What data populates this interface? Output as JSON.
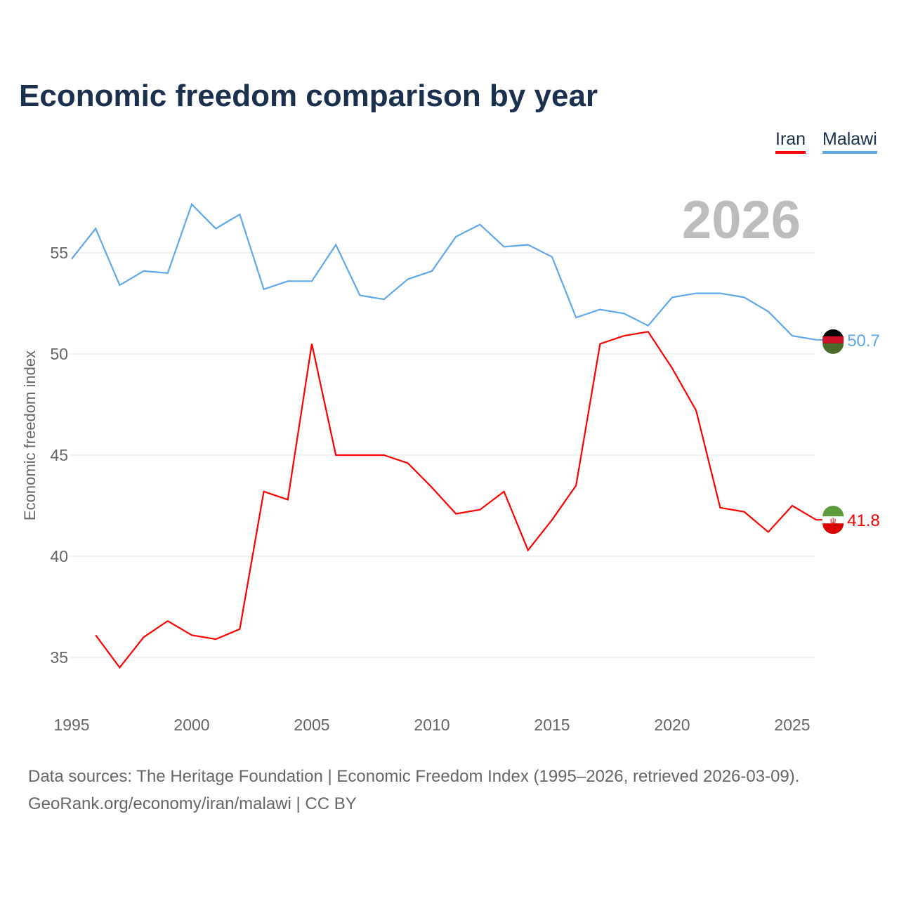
{
  "title": "Economic freedom comparison by year",
  "year_label": "2026",
  "footer": {
    "line1": "Data sources: The Heritage Foundation | Economic Freedom Index (1995–2026, retrieved 2026-03-09).",
    "line2": "GeoRank.org/economy/iran/malawi | CC BY"
  },
  "chart_data": {
    "type": "line",
    "title": "Economic freedom comparison by year",
    "xlabel": "",
    "ylabel": "Economic freedom index",
    "xlim": [
      1995,
      2026
    ],
    "ylim": [
      33,
      58
    ],
    "xticks": [
      1995,
      2000,
      2005,
      2010,
      2015,
      2020,
      2025
    ],
    "yticks": [
      35,
      40,
      45,
      50,
      55
    ],
    "grid": true,
    "legend_position": "top-right",
    "series": [
      {
        "name": "Iran",
        "color": "#ff0000",
        "end_label": "41.8",
        "x": [
          1996,
          1997,
          1998,
          1999,
          2000,
          2001,
          2002,
          2003,
          2004,
          2005,
          2006,
          2007,
          2008,
          2009,
          2010,
          2011,
          2012,
          2013,
          2014,
          2015,
          2016,
          2017,
          2018,
          2019,
          2020,
          2021,
          2022,
          2023,
          2024,
          2025,
          2026
        ],
        "values": [
          36.1,
          34.5,
          36.0,
          36.8,
          36.1,
          35.9,
          36.4,
          43.2,
          42.8,
          50.5,
          45.0,
          45.0,
          45.0,
          44.6,
          43.4,
          42.1,
          42.3,
          43.2,
          40.3,
          41.8,
          43.5,
          50.5,
          50.9,
          51.1,
          49.3,
          47.2,
          42.4,
          42.2,
          41.2,
          42.5,
          41.8
        ]
      },
      {
        "name": "Malawi",
        "color": "#5ea8ee",
        "end_label": "50.7",
        "x": [
          1995,
          1996,
          1997,
          1998,
          1999,
          2000,
          2001,
          2002,
          2003,
          2004,
          2005,
          2006,
          2007,
          2008,
          2009,
          2010,
          2011,
          2012,
          2013,
          2014,
          2015,
          2016,
          2017,
          2018,
          2019,
          2020,
          2021,
          2022,
          2023,
          2024,
          2025,
          2026
        ],
        "values": [
          54.7,
          56.2,
          53.4,
          54.1,
          54.0,
          57.4,
          56.2,
          56.9,
          53.2,
          53.6,
          53.6,
          55.4,
          52.9,
          52.7,
          53.7,
          54.1,
          55.8,
          56.4,
          55.3,
          55.4,
          54.8,
          51.8,
          52.2,
          52.0,
          51.4,
          52.8,
          53.0,
          53.0,
          52.8,
          52.1,
          50.9,
          50.7
        ]
      }
    ]
  }
}
